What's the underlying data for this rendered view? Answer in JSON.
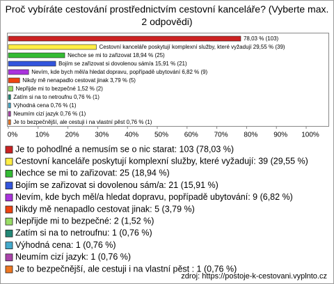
{
  "chart_data": {
    "type": "bar",
    "orientation": "horizontal",
    "title": "Proč vybíráte cestování prostřednictvím cestovní kanceláře? (Vyberte max. 2 odpovědi)",
    "values": [
      78.03,
      29.55,
      18.94,
      15.91,
      6.82,
      3.79,
      1.52,
      0.76,
      0.76,
      0.76,
      0.76
    ],
    "value_labels": [
      "78,03 % (103)",
      "Cestovní kanceláře poskytují komplexní služby, které vyžadují 29,55 % (39)",
      "Nechce se mi to zařizovat 18,94 % (25)",
      "Bojím se zařizovat si dovolenou sám/a 15,91 % (21)",
      "Nevím, kde bych měl/a hledat dopravu, popřípadě ubytování 6,82 % (9)",
      "Nikdy mě nenapadlo cestovat jinak 3,79 % (5)",
      "Nepřijde mi to bezpečné 1,52 % (2)",
      "Zatím si na to netroufnu 0,76 % (1)",
      "Výhodná cena 0,76 % (1)",
      "Neumím cizí jazyk 0,76 % (1)",
      "Je to bezpečnější, ale cestuji i na vlastní pěst  0,76 % (1)"
    ],
    "legend_labels": [
      "Je to pohodlné a nemusím se o nic starat: 103 (78,03 %)",
      "Cestovní kanceláře poskytují komplexní služby, které vyžadují: 39 (29,55 %)",
      "Nechce se mi to zařizovat: 25 (18,94 %)",
      "Bojím se zařizovat si dovolenou sám/a: 21 (15,91 %)",
      "Nevím, kde bych měl/a hledat dopravu, popřípadě ubytování: 9 (6,82 %)",
      "Nikdy mě nenapadlo cestovat jinak: 5 (3,79 %)",
      "Nepřijde mi to bezpečné: 2 (1,52 %)",
      "Zatím si na to netroufnu: 1 (0,76 %)",
      "Výhodná cena: 1 (0,76 %)",
      "Neumím cizí jazyk: 1 (0,76 %)",
      "Je to bezpečnější, ale cestuji i na vlastní pěst : 1 (0,76 %)"
    ],
    "colors": [
      "#cc2222",
      "#ffee44",
      "#33bb33",
      "#3355dd",
      "#aa33dd",
      "#ee4411",
      "#99dd66",
      "#228877",
      "#44aacc",
      "#aa44aa",
      "#ee7722"
    ],
    "xlim": [
      0,
      100
    ],
    "xticks": [
      {
        "value": 0,
        "label": "0%"
      },
      {
        "value": 10,
        "label": "10%"
      },
      {
        "value": 20,
        "label": "20%"
      },
      {
        "value": 30,
        "label": "30%"
      },
      {
        "value": 40,
        "label": "40%"
      },
      {
        "value": 50,
        "label": "50%"
      },
      {
        "value": 60,
        "label": "60%"
      },
      {
        "value": 70,
        "label": "70%"
      },
      {
        "value": 80,
        "label": "80%"
      },
      {
        "value": 90,
        "label": "90%"
      },
      {
        "value": 100,
        "label": "100%"
      }
    ],
    "source": "zdroj: https://postoje-k-cestovani.vyplnto.cz"
  }
}
